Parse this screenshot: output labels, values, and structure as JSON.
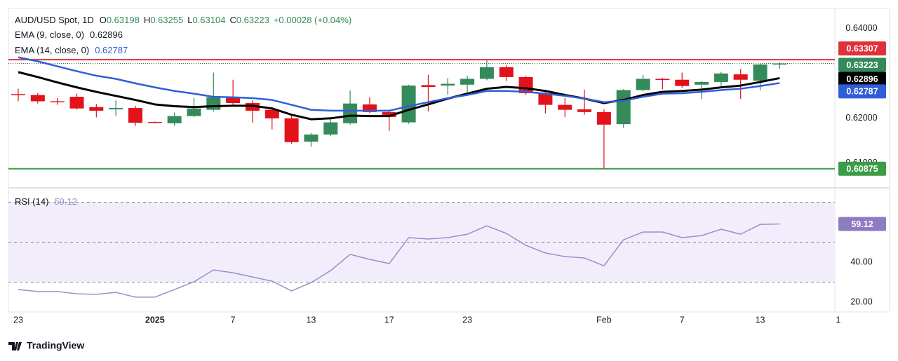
{
  "chart_data": [
    {
      "type": "candlestick",
      "title": "AUD/USD Spot, 1D",
      "ohlc_prefixes": [
        "O",
        "H",
        "L",
        "C"
      ],
      "change_text": "+0.00028 (+0.04%)",
      "categories": [
        "23",
        null,
        null,
        null,
        null,
        null,
        null,
        "2025",
        null,
        null,
        null,
        "7",
        null,
        null,
        null,
        "13",
        null,
        null,
        null,
        "17",
        null,
        null,
        null,
        "23",
        null,
        null,
        null,
        null,
        null,
        null,
        "Feb",
        null,
        null,
        null,
        "7",
        null,
        null,
        null,
        "13",
        null,
        null,
        null,
        "1"
      ],
      "open": [
        0.6254,
        0.6252,
        0.6238,
        0.6248,
        0.6225,
        0.622,
        0.6223,
        0.6192,
        0.6189,
        0.6205,
        0.6219,
        0.6247,
        0.6234,
        0.6219,
        0.62,
        0.6148,
        0.6164,
        0.6189,
        0.6231,
        0.6214,
        0.6191,
        0.6274,
        0.6273,
        0.6275,
        0.6288,
        0.6314,
        0.6292,
        0.6256,
        0.623,
        0.622,
        0.6214,
        0.6187,
        0.6263,
        0.6288,
        0.6286,
        0.6275,
        0.6281,
        0.6298,
        0.6284,
        0.63198,
        null,
        null,
        null
      ],
      "high": [
        0.6266,
        0.6256,
        0.6245,
        0.6255,
        0.6232,
        0.624,
        0.6228,
        0.6193,
        0.6213,
        0.6245,
        0.6302,
        0.6286,
        0.624,
        0.6225,
        0.6205,
        0.6167,
        0.6198,
        0.6262,
        0.6247,
        0.6218,
        0.6275,
        0.6297,
        0.629,
        0.6295,
        0.6331,
        0.6318,
        0.6295,
        0.6262,
        0.6245,
        0.6264,
        0.622,
        0.6265,
        0.6297,
        0.629,
        0.6302,
        0.6283,
        0.6303,
        0.631,
        0.6322,
        0.63255,
        null,
        null,
        null
      ],
      "low": [
        0.6238,
        0.6233,
        0.623,
        0.6219,
        0.6202,
        0.6205,
        0.6183,
        0.619,
        0.6183,
        0.6203,
        0.6215,
        0.6228,
        0.619,
        0.6175,
        0.6143,
        0.6137,
        0.616,
        0.6186,
        0.6212,
        0.6172,
        0.6188,
        0.6215,
        0.6253,
        0.6258,
        0.6285,
        0.6283,
        0.6252,
        0.6211,
        0.6203,
        0.6208,
        0.6088,
        0.6179,
        0.626,
        0.6265,
        0.6268,
        0.6243,
        0.6272,
        0.6243,
        0.6262,
        0.63104,
        null,
        null,
        null
      ],
      "close": [
        0.6252,
        0.6238,
        0.6237,
        0.6222,
        0.6217,
        0.6223,
        0.619,
        0.6191,
        0.6205,
        0.6222,
        0.6247,
        0.6234,
        0.6217,
        0.62,
        0.6147,
        0.6164,
        0.6191,
        0.6233,
        0.6214,
        0.6203,
        0.6273,
        0.627,
        0.6277,
        0.6288,
        0.6314,
        0.6292,
        0.6256,
        0.623,
        0.6219,
        0.6214,
        0.6186,
        0.6263,
        0.6288,
        0.6287,
        0.6272,
        0.6281,
        0.63,
        0.6286,
        0.632,
        0.63223,
        null,
        null,
        null
      ],
      "up_color": "#358a5b",
      "down_color": "#e2121b",
      "series": [
        {
          "name": "EMA (9, close, 0)",
          "color": "#000000",
          "values": [
            0.6303,
            0.6292,
            0.628,
            0.6269,
            0.6259,
            0.625,
            0.6241,
            0.6231,
            0.6227,
            0.6225,
            0.6227,
            0.6228,
            0.6228,
            0.6222,
            0.6208,
            0.6198,
            0.62,
            0.6206,
            0.6205,
            0.6205,
            0.6219,
            0.6231,
            0.6244,
            0.6255,
            0.6266,
            0.627,
            0.6267,
            0.6261,
            0.6252,
            0.6244,
            0.6234,
            0.6241,
            0.6252,
            0.6259,
            0.6261,
            0.6264,
            0.6269,
            0.6273,
            0.6281,
            0.62896,
            null,
            null,
            null
          ]
        },
        {
          "name": "EMA (14, close, 0)",
          "color": "#2f5fd8",
          "values": [
            0.6336,
            0.6327,
            0.6316,
            0.6305,
            0.6295,
            0.6288,
            0.6278,
            0.6269,
            0.6261,
            0.6255,
            0.6248,
            0.6247,
            0.6245,
            0.6241,
            0.623,
            0.6219,
            0.6217,
            0.6217,
            0.6217,
            0.6217,
            0.6227,
            0.6236,
            0.6245,
            0.6252,
            0.6261,
            0.6261,
            0.6259,
            0.6255,
            0.625,
            0.6244,
            0.6236,
            0.6239,
            0.6248,
            0.6255,
            0.6256,
            0.6259,
            0.6263,
            0.6266,
            0.6272,
            0.62787,
            null,
            null,
            null
          ]
        }
      ],
      "hlines": [
        {
          "value": 0.63307,
          "color": "#e0303a"
        },
        {
          "value": 0.60875,
          "color": "#3b9b47"
        }
      ],
      "ylim": [
        0.6045,
        0.6445
      ],
      "yticks": [
        {
          "value": 0.64,
          "label": "0.64000"
        },
        {
          "value": 0.62,
          "label": "0.62000"
        },
        {
          "value": 0.61,
          "label": "0.61000"
        }
      ]
    },
    {
      "type": "line",
      "series": [
        {
          "name": "RSI (14)",
          "color": "#9e8cc9",
          "values": [
            26.3,
            25.3,
            25.3,
            24.2,
            23.9,
            24.9,
            22.5,
            22.5,
            26.3,
            30.2,
            36.1,
            34.7,
            32.6,
            30.5,
            25.6,
            29.8,
            35.8,
            43.9,
            41.4,
            39.3,
            52.3,
            51.6,
            52.3,
            54.0,
            58.2,
            54.4,
            48.4,
            44.6,
            42.8,
            42.1,
            38.2,
            51.2,
            55.1,
            55.1,
            52.3,
            53.3,
            56.5,
            54.0,
            58.9,
            59.12,
            null,
            null,
            null
          ]
        }
      ],
      "band": [
        30,
        70
      ],
      "levels": [
        70,
        50,
        30
      ],
      "band_color": "#f2edfb",
      "ylim": [
        15.1,
        76.5
      ],
      "yticks": [
        {
          "value": 40,
          "label": "40.00"
        },
        {
          "value": 20,
          "label": "20.00"
        }
      ]
    }
  ],
  "brand": "TradingView"
}
